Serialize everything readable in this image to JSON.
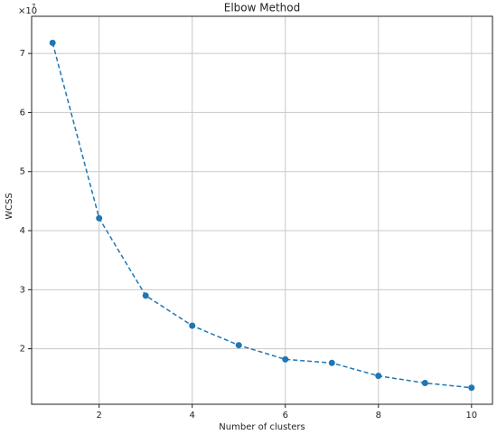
{
  "chart_data": {
    "type": "line",
    "title": "Elbow Method",
    "xlabel": "Number of clusters",
    "ylabel": "WCSS",
    "y_offset_base": "×10",
    "y_offset_exponent": "7",
    "x": [
      1,
      2,
      3,
      4,
      5,
      6,
      7,
      8,
      9,
      10
    ],
    "series": [
      {
        "name": "WCSS",
        "color": "#1f77b4",
        "linestyle": "dashed",
        "marker": "o",
        "values": [
          7.18,
          4.21,
          2.9,
          2.39,
          2.06,
          1.82,
          1.76,
          1.54,
          1.42,
          1.34
        ]
      }
    ],
    "xlim": [
      0.55,
      10.45
    ],
    "xticks": [
      2,
      4,
      6,
      8,
      10
    ],
    "ylim": [
      1.06,
      7.63
    ],
    "yticks": [
      2,
      3,
      4,
      5,
      6,
      7
    ],
    "grid": true
  }
}
